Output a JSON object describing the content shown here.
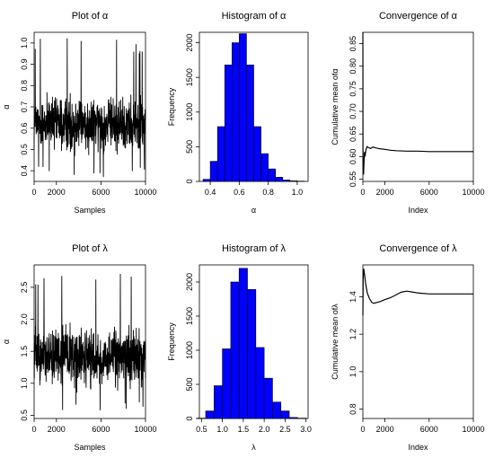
{
  "chart_data": [
    {
      "id": "alpha-trace",
      "type": "line",
      "title": "Plot of α",
      "xlabel": "Samples",
      "ylabel": "α",
      "xticks": [
        "0",
        "2000",
        "6000",
        "10000"
      ],
      "yticks": [
        "0.4",
        "0.5",
        "0.6",
        "0.7",
        "0.8",
        "0.9",
        "1.0"
      ],
      "xlim": [
        0,
        10000
      ],
      "ylim": [
        0.35,
        1.05
      ],
      "trace": {
        "n": 10000,
        "center": 0.62,
        "typical_low": 0.45,
        "typical_high": 0.82,
        "min": 0.37,
        "max": 1.03
      }
    },
    {
      "id": "alpha-hist",
      "type": "bar",
      "title": "Histogram of α",
      "xlabel": "α",
      "ylabel": "Frequency",
      "xticks": [
        "0.4",
        "0.6",
        "0.8",
        "1.0"
      ],
      "yticks": [
        "0",
        "500",
        "1000",
        "1500",
        "2000"
      ],
      "xlim": [
        0.325,
        1.075
      ],
      "ylim": [
        0,
        2150
      ],
      "bin_edges": [
        0.35,
        0.4,
        0.45,
        0.5,
        0.55,
        0.6,
        0.65,
        0.7,
        0.75,
        0.8,
        0.85,
        0.9,
        0.95,
        1.0,
        1.05
      ],
      "values": [
        30,
        290,
        790,
        1680,
        2000,
        2130,
        1680,
        790,
        400,
        180,
        60,
        20,
        8,
        4
      ],
      "bar_color": "#0000ff"
    },
    {
      "id": "alpha-convergence",
      "type": "line",
      "title": "Convergence of α",
      "xlabel": "Index",
      "ylabel": "Cumulative mean ofα",
      "xticks": [
        "0",
        "2000",
        "6000",
        "10000"
      ],
      "yticks": [
        "0.55",
        "0.60",
        "0.65",
        "0.70",
        "0.75",
        "0.80",
        "0.85"
      ],
      "xlim": [
        0,
        10000
      ],
      "ylim": [
        0.545,
        0.875
      ],
      "x": [
        1,
        10,
        30,
        60,
        100,
        150,
        200,
        280,
        380,
        500,
        700,
        900,
        1200,
        1600,
        2000,
        2500,
        3000,
        4000,
        5000,
        6000,
        7000,
        8000,
        9000,
        10000
      ],
      "values": [
        0.875,
        0.62,
        0.58,
        0.56,
        0.585,
        0.61,
        0.6,
        0.615,
        0.622,
        0.62,
        0.618,
        0.621,
        0.619,
        0.617,
        0.616,
        0.614,
        0.613,
        0.612,
        0.612,
        0.611,
        0.611,
        0.611,
        0.611,
        0.611
      ]
    },
    {
      "id": "lambda-trace",
      "type": "line",
      "title": "Plot of λ",
      "xlabel": "Samples",
      "ylabel": "α",
      "xticks": [
        "0",
        "2000",
        "6000",
        "10000"
      ],
      "yticks": [
        "0.5",
        "1.0",
        "1.5",
        "2.0",
        "2.5"
      ],
      "xlim": [
        0,
        10000
      ],
      "ylim": [
        0.45,
        2.85
      ],
      "trace": {
        "n": 10000,
        "center": 1.42,
        "typical_low": 0.85,
        "typical_high": 2.15,
        "min": 0.55,
        "max": 2.8
      }
    },
    {
      "id": "lambda-hist",
      "type": "bar",
      "title": "Histogram of λ",
      "xlabel": "λ",
      "ylabel": "Frequency",
      "xticks": [
        "0.5",
        "1.0",
        "1.5",
        "2.0",
        "2.5",
        "3.0"
      ],
      "yticks": [
        "0",
        "500",
        "1000",
        "1500",
        "2000"
      ],
      "xlim": [
        0.45,
        3.05
      ],
      "ylim": [
        0,
        2250
      ],
      "bin_edges": [
        0.4,
        0.6,
        0.8,
        1.0,
        1.2,
        1.4,
        1.6,
        1.8,
        2.0,
        2.2,
        2.4,
        2.6,
        2.8,
        3.0
      ],
      "values": [
        5,
        110,
        480,
        1020,
        2000,
        2200,
        1890,
        1040,
        590,
        240,
        110,
        15,
        5
      ],
      "bar_color": "#0000ff"
    },
    {
      "id": "lambda-convergence",
      "type": "line",
      "title": "Convergence of λ",
      "xlabel": "Index",
      "ylabel": "Cumulative mean ofλ",
      "xticks": [
        "0",
        "2000",
        "6000",
        "10000"
      ],
      "yticks": [
        "0.8",
        "1.0",
        "1.2",
        "1.4"
      ],
      "xlim": [
        0,
        10000
      ],
      "ylim": [
        0.75,
        1.57
      ],
      "x": [
        1,
        30,
        80,
        150,
        250,
        400,
        600,
        800,
        1000,
        1300,
        1600,
        2000,
        2500,
        3000,
        3500,
        4000,
        4500,
        5000,
        6000,
        7000,
        8000,
        9000,
        10000
      ],
      "values": [
        1.3,
        1.5,
        1.55,
        1.52,
        1.47,
        1.42,
        1.39,
        1.37,
        1.365,
        1.37,
        1.375,
        1.385,
        1.395,
        1.41,
        1.425,
        1.43,
        1.425,
        1.42,
        1.415,
        1.415,
        1.415,
        1.415,
        1.415
      ]
    }
  ]
}
